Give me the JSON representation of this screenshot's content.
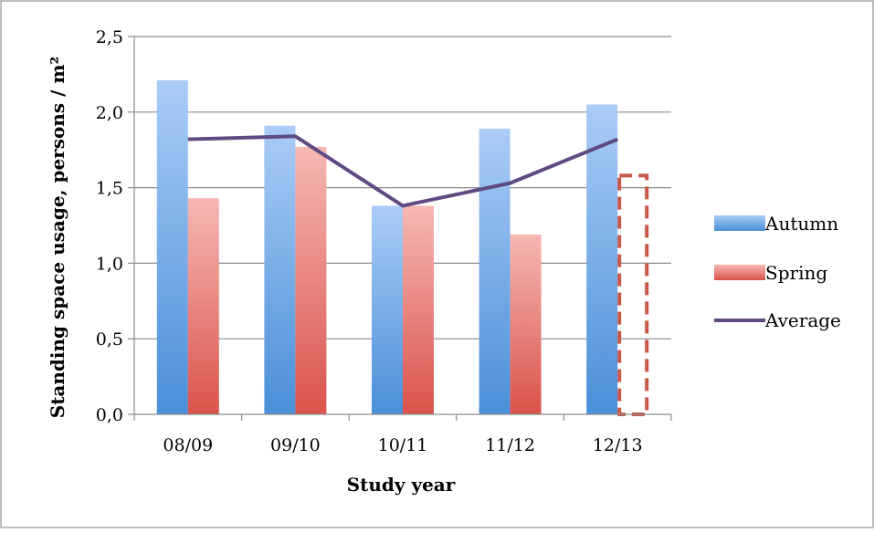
{
  "chart_data": {
    "type": "bar",
    "title": "",
    "xlabel": "Study year",
    "ylabel": "Standing space usage, persons / m²",
    "categories": [
      "08/09",
      "09/10",
      "10/11",
      "11/12",
      "12/13"
    ],
    "y_ticks": [
      "0,0",
      "0,5",
      "1,0",
      "1,5",
      "2,0",
      "2,5"
    ],
    "ylim": [
      0,
      2.5
    ],
    "grid": true,
    "legend_position": "right",
    "series": [
      {
        "name": "Autumn",
        "kind": "bar",
        "values": [
          2.21,
          1.91,
          1.38,
          1.89,
          2.05
        ],
        "color_top": "#aaccf6",
        "color_bottom": "#4a8fd8"
      },
      {
        "name": "Spring",
        "kind": "bar",
        "values": [
          1.43,
          1.77,
          1.38,
          1.19,
          1.58
        ],
        "dashed_outline_indices": [
          4
        ],
        "color_top": "#f6b8b4",
        "color_bottom": "#d9534a"
      },
      {
        "name": "Average",
        "kind": "line",
        "values": [
          1.82,
          1.84,
          1.38,
          1.53,
          1.82
        ],
        "color": "#5f4a82"
      }
    ]
  }
}
